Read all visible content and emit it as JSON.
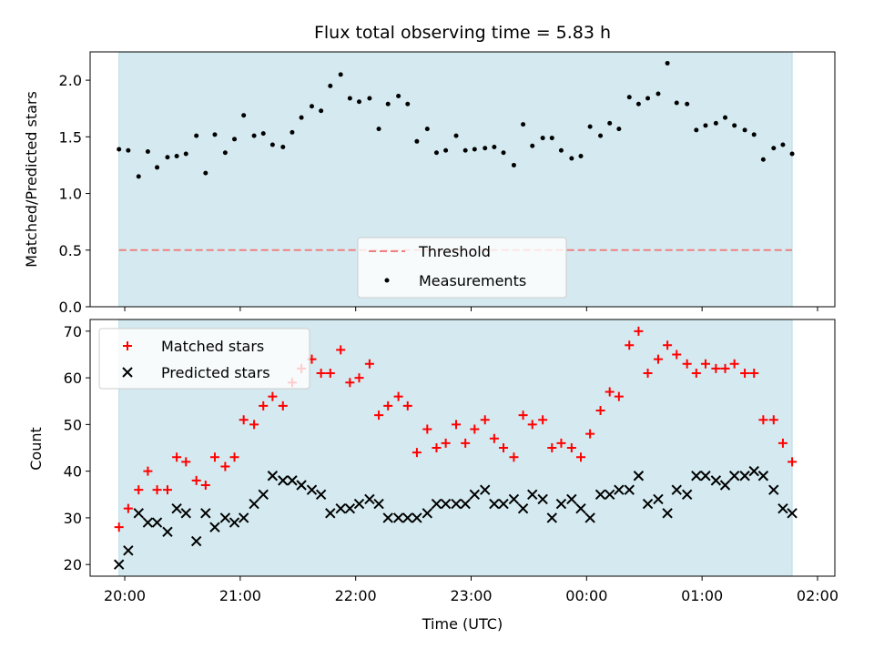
{
  "title": "Flux total observing time = 5.83 h",
  "colors": {
    "observing_window": "#d4eaf0",
    "threshold": "#f08080",
    "measurement": "#000000",
    "matched": "#ff0000",
    "predicted": "#000000"
  },
  "chart_data": [
    {
      "type": "scatter",
      "name": "ratio-panel",
      "ylabel": "Matched/Predicted stars",
      "xlabel": "",
      "ylim": [
        0,
        2.25
      ],
      "yticks": [
        0.0,
        0.5,
        1.0,
        1.5,
        2.0
      ],
      "ytick_labels": [
        "0.0",
        "0.5",
        "1.0",
        "1.5",
        "2.0"
      ],
      "xlim_hours": [
        19.7,
        26.15
      ],
      "observing_window_hours": [
        19.95,
        25.78
      ],
      "threshold": 0.5,
      "legend": {
        "position": "lower-center",
        "entries": [
          "Threshold",
          "Measurements"
        ]
      },
      "series": [
        {
          "name": "Measurements",
          "marker": "dot",
          "x_hours": [
            19.95,
            20.03,
            20.12,
            20.2,
            20.28,
            20.37,
            20.45,
            20.53,
            20.62,
            20.7,
            20.78,
            20.87,
            20.95,
            21.03,
            21.12,
            21.2,
            21.28,
            21.37,
            21.45,
            21.53,
            21.62,
            21.7,
            21.78,
            21.87,
            21.95,
            22.03,
            22.12,
            22.2,
            22.28,
            22.37,
            22.45,
            22.53,
            22.62,
            22.7,
            22.78,
            22.87,
            22.95,
            23.03,
            23.12,
            23.2,
            23.28,
            23.37,
            23.45,
            23.53,
            23.62,
            23.7,
            23.78,
            23.87,
            23.95,
            24.03,
            24.12,
            24.2,
            24.28,
            24.37,
            24.45,
            24.53,
            24.62,
            24.7,
            24.78,
            24.87,
            24.95,
            25.03,
            25.12,
            25.2,
            25.28,
            25.37,
            25.45,
            25.53,
            25.62,
            25.7,
            25.78
          ],
          "y": [
            1.39,
            1.38,
            1.15,
            1.37,
            1.23,
            1.32,
            1.33,
            1.35,
            1.51,
            1.18,
            1.52,
            1.36,
            1.48,
            1.69,
            1.51,
            1.53,
            1.43,
            1.41,
            1.54,
            1.67,
            1.77,
            1.73,
            1.95,
            2.05,
            1.84,
            1.81,
            1.84,
            1.57,
            1.79,
            1.86,
            1.79,
            1.46,
            1.57,
            1.36,
            1.38,
            1.51,
            1.38,
            1.39,
            1.4,
            1.41,
            1.36,
            1.25,
            1.61,
            1.42,
            1.49,
            1.49,
            1.38,
            1.31,
            1.33,
            1.59,
            1.51,
            1.62,
            1.57,
            1.85,
            1.79,
            1.84,
            1.88,
            2.15,
            1.8,
            1.79,
            1.56,
            1.6,
            1.62,
            1.67,
            1.6,
            1.56,
            1.52,
            1.3,
            1.4,
            1.43,
            1.35
          ]
        }
      ]
    },
    {
      "type": "scatter",
      "name": "count-panel",
      "ylabel": "Count",
      "xlabel": "Time (UTC)",
      "ylim": [
        17.5,
        72.5
      ],
      "yticks": [
        20,
        30,
        40,
        50,
        60,
        70
      ],
      "ytick_labels": [
        "20",
        "30",
        "40",
        "50",
        "60",
        "70"
      ],
      "xlim_hours": [
        19.7,
        26.15
      ],
      "xticks_hours": [
        20,
        21,
        22,
        23,
        24,
        25,
        26
      ],
      "xtick_labels": [
        "20:00",
        "21:00",
        "22:00",
        "23:00",
        "00:00",
        "01:00",
        "02:00"
      ],
      "observing_window_hours": [
        19.95,
        25.78
      ],
      "legend": {
        "position": "upper-left",
        "entries": [
          "Matched stars",
          "Predicted stars"
        ]
      },
      "series": [
        {
          "name": "Matched stars",
          "marker": "plus",
          "x_hours": [
            19.95,
            20.03,
            20.12,
            20.2,
            20.28,
            20.37,
            20.45,
            20.53,
            20.62,
            20.7,
            20.78,
            20.87,
            20.95,
            21.03,
            21.12,
            21.2,
            21.28,
            21.37,
            21.45,
            21.53,
            21.62,
            21.7,
            21.78,
            21.87,
            21.95,
            22.03,
            22.12,
            22.2,
            22.28,
            22.37,
            22.45,
            22.53,
            22.62,
            22.7,
            22.78,
            22.87,
            22.95,
            23.03,
            23.12,
            23.2,
            23.28,
            23.37,
            23.45,
            23.53,
            23.62,
            23.7,
            23.78,
            23.87,
            23.95,
            24.03,
            24.12,
            24.2,
            24.28,
            24.37,
            24.45,
            24.53,
            24.62,
            24.7,
            24.78,
            24.87,
            24.95,
            25.03,
            25.12,
            25.2,
            25.28,
            25.37,
            25.45,
            25.53,
            25.62,
            25.7,
            25.78
          ],
          "y": [
            28,
            32,
            36,
            40,
            36,
            36,
            43,
            42,
            38,
            37,
            43,
            41,
            43,
            51,
            50,
            54,
            56,
            54,
            59,
            62,
            64,
            61,
            61,
            66,
            59,
            60,
            63,
            52,
            54,
            56,
            54,
            44,
            49,
            45,
            46,
            50,
            46,
            49,
            51,
            47,
            45,
            43,
            52,
            50,
            51,
            45,
            46,
            45,
            43,
            48,
            53,
            57,
            56,
            67,
            70,
            61,
            64,
            67,
            65,
            63,
            61,
            63,
            62,
            62,
            63,
            61,
            61,
            51,
            51,
            46,
            42
          ]
        },
        {
          "name": "Predicted stars",
          "marker": "x",
          "x_hours": [
            19.95,
            20.03,
            20.12,
            20.2,
            20.28,
            20.37,
            20.45,
            20.53,
            20.62,
            20.7,
            20.78,
            20.87,
            20.95,
            21.03,
            21.12,
            21.2,
            21.28,
            21.37,
            21.45,
            21.53,
            21.62,
            21.7,
            21.78,
            21.87,
            21.95,
            22.03,
            22.12,
            22.2,
            22.28,
            22.37,
            22.45,
            22.53,
            22.62,
            22.7,
            22.78,
            22.87,
            22.95,
            23.03,
            23.12,
            23.2,
            23.28,
            23.37,
            23.45,
            23.53,
            23.62,
            23.7,
            23.78,
            23.87,
            23.95,
            24.03,
            24.12,
            24.2,
            24.28,
            24.37,
            24.45,
            24.53,
            24.62,
            24.7,
            24.78,
            24.87,
            24.95,
            25.03,
            25.12,
            25.2,
            25.28,
            25.37,
            25.45,
            25.53,
            25.62,
            25.7,
            25.78
          ],
          "y": [
            20,
            23,
            31,
            29,
            29,
            27,
            32,
            31,
            25,
            31,
            28,
            30,
            29,
            30,
            33,
            35,
            39,
            38,
            38,
            37,
            36,
            35,
            31,
            32,
            32,
            33,
            34,
            33,
            30,
            30,
            30,
            30,
            31,
            33,
            33,
            33,
            33,
            35,
            36,
            33,
            33,
            34,
            32,
            35,
            34,
            30,
            33,
            34,
            32,
            30,
            35,
            35,
            36,
            36,
            39,
            33,
            34,
            31,
            36,
            35,
            39,
            39,
            38,
            37,
            39,
            39,
            40,
            39,
            36,
            32,
            31
          ]
        }
      ]
    }
  ]
}
